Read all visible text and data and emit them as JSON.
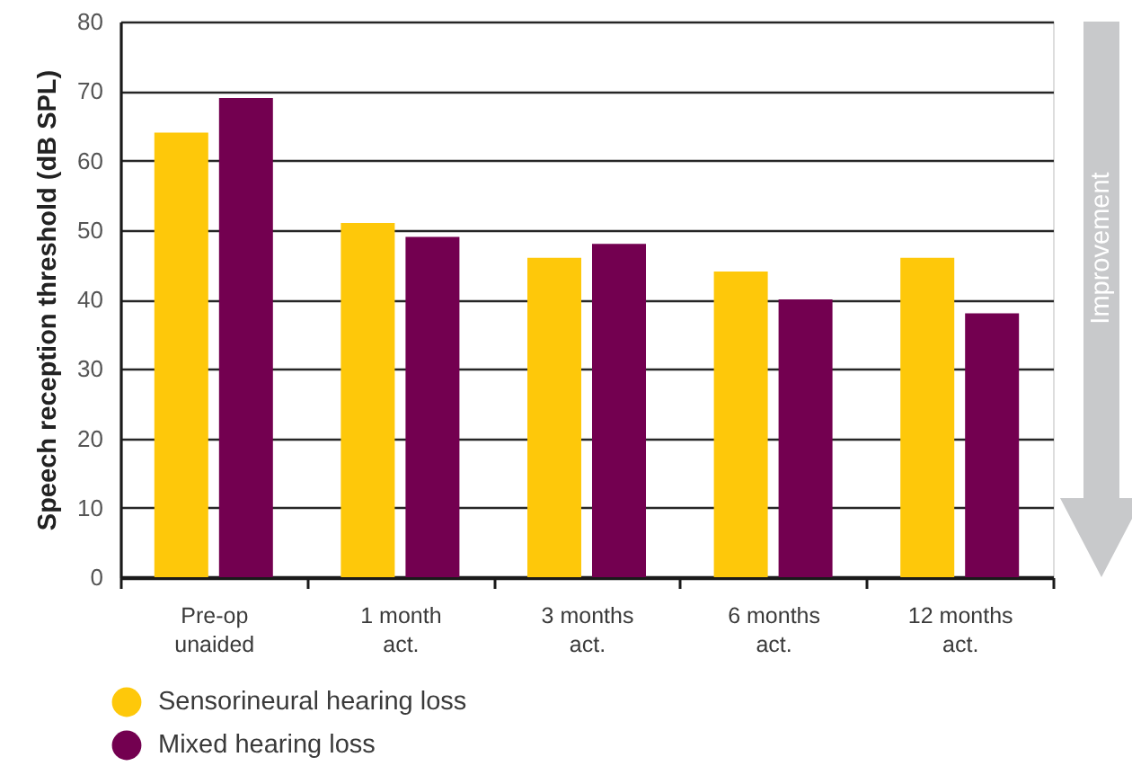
{
  "chart_data": {
    "type": "bar",
    "ylabel": "Speech reception threshold (dB SPL)",
    "categories": [
      "Pre-op\nunaided",
      "1 month\nact.",
      "3 months\nact.",
      "6 months\nact.",
      "12 months\nact."
    ],
    "series": [
      {
        "name": "Sensorineural hearing loss",
        "color": "#fec80a",
        "values": [
          64,
          51,
          46,
          44,
          46
        ]
      },
      {
        "name": "Mixed hearing loss",
        "color": "#730050",
        "values": [
          69,
          49,
          48,
          40,
          38
        ]
      }
    ],
    "ylim": [
      0,
      80
    ],
    "yticks": [
      0,
      10,
      20,
      30,
      40,
      50,
      60,
      70,
      80
    ],
    "grid": "y",
    "legend": "bottom left",
    "annotations": [
      "Improvement"
    ]
  }
}
